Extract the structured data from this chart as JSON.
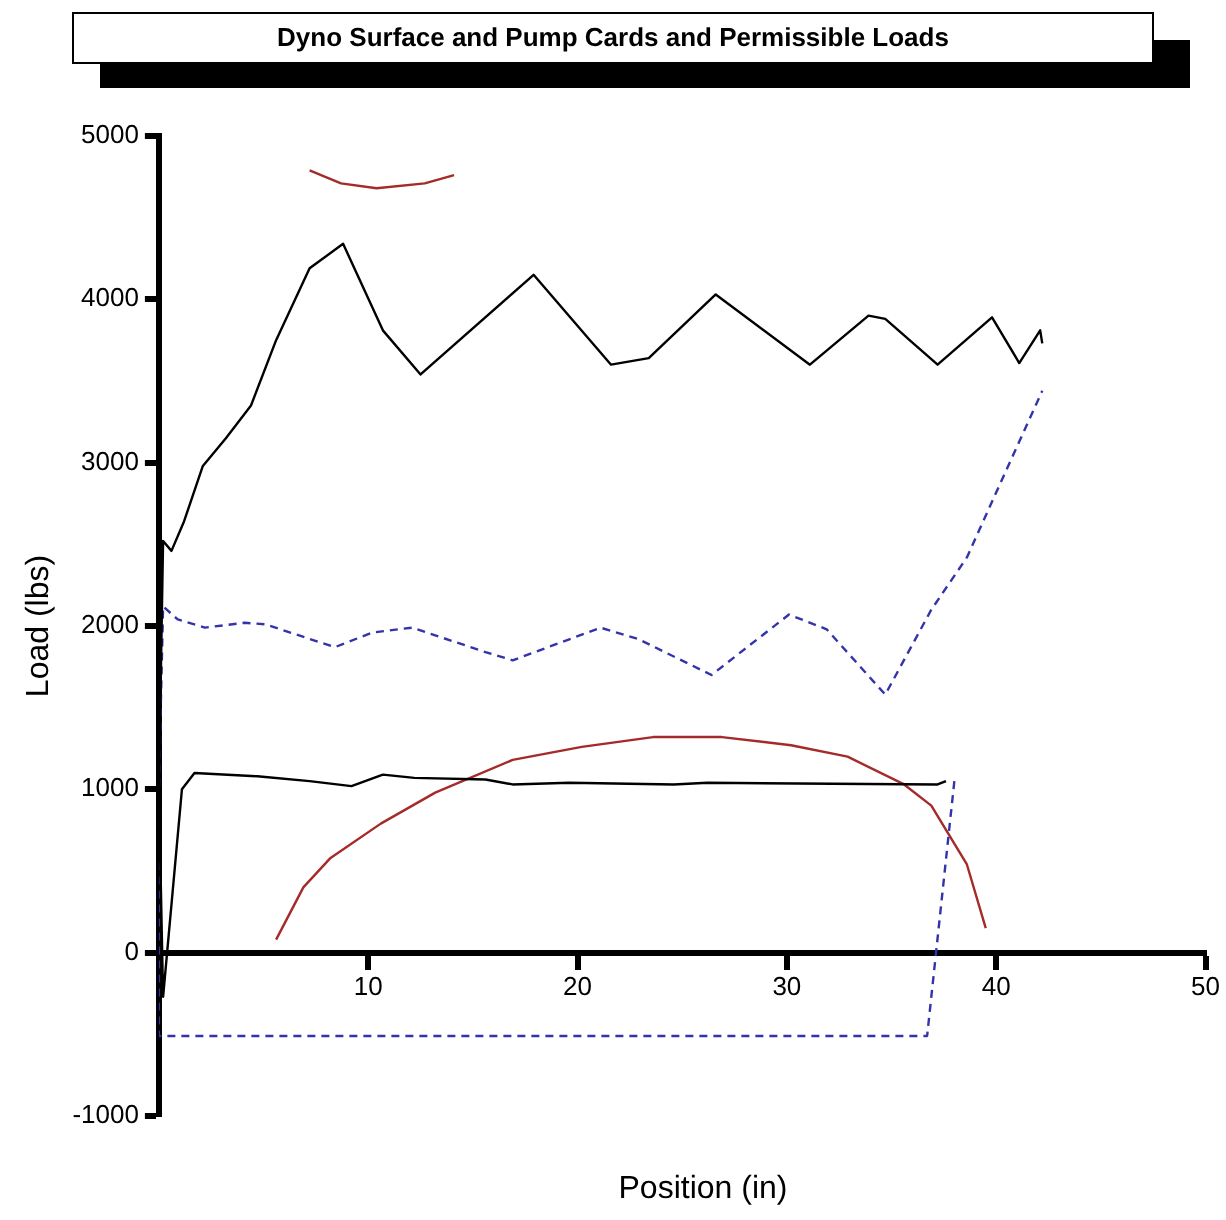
{
  "chart_data": {
    "type": "line",
    "title": "Dyno Surface and Pump Cards and Permissible Loads",
    "xlabel": "Position (in)",
    "ylabel": "Load (lbs)",
    "xlim": [
      0,
      50
    ],
    "xticks": [
      {
        "value": 0,
        "label": null
      },
      10,
      20,
      30,
      40,
      50
    ],
    "ylim": [
      -1000,
      5000
    ],
    "yticks": [
      -1000,
      0,
      1000,
      2000,
      3000,
      4000,
      5000
    ],
    "grid": false,
    "legend": false,
    "marker": "none",
    "series": [
      {
        "color": "#000000",
        "line_style": "solid",
        "x": [
          37.6,
          37.2,
          26.2,
          24.6,
          19.6,
          16.9,
          15.6,
          12.2,
          10.7,
          9.2,
          7.2,
          4.7,
          1.7,
          1.1,
          0.2,
          0,
          0.2,
          0.6,
          1.2,
          2.1,
          3.2,
          4.4,
          5.6,
          7.2,
          8.8,
          10.7,
          12.5,
          17.9,
          21.6,
          23.4,
          26.6,
          31.1,
          33.9,
          34.7,
          37.2,
          39.8,
          41.1,
          42.1,
          42.2
        ],
        "values": [
          1050,
          1030,
          1040,
          1030,
          1040,
          1030,
          1060,
          1070,
          1090,
          1020,
          1050,
          1080,
          1100,
          1000,
          -270,
          1000,
          2520,
          2460,
          2640,
          2980,
          3150,
          3350,
          3750,
          4190,
          4340,
          3810,
          3540,
          4150,
          3600,
          3640,
          4030,
          3600,
          3900,
          3880,
          3600,
          3890,
          3610,
          3810,
          3730
        ]
      },
      {
        "color": "#3333aa",
        "line_style": "dashed",
        "x": [
          38.0,
          36.7,
          0,
          0,
          0.2,
          0.9,
          2.2,
          4.1,
          5.1,
          8.4,
          10.2,
          12.1,
          15.6,
          16.9,
          21.1,
          22.9,
          26.4,
          30.1,
          31.9,
          34.7,
          36.9,
          38.6,
          39.9,
          42.2
        ],
        "values": [
          1050,
          -510,
          -510,
          1000,
          2120,
          2040,
          1990,
          2020,
          2010,
          1870,
          1960,
          1990,
          1840,
          1790,
          1990,
          1920,
          1700,
          2070,
          1980,
          1580,
          2100,
          2420,
          2790,
          3440
        ]
      },
      {
        "color": "#a52a2a",
        "line_style": "solid",
        "x": [
          7.2,
          8.7,
          10.4,
          12.7,
          14.1
        ],
        "values": [
          4790,
          4710,
          4680,
          4710,
          4760
        ]
      },
      {
        "color": "#a52a2a",
        "line_style": "solid",
        "x": [
          5.6,
          6.9,
          8.2,
          10.6,
          13.2,
          16.9,
          20.2,
          23.6,
          26.9,
          30.2,
          32.9,
          35.6,
          36.9,
          38.6,
          39.5
        ],
        "values": [
          80,
          400,
          580,
          790,
          980,
          1180,
          1260,
          1320,
          1320,
          1270,
          1200,
          1030,
          900,
          540,
          150
        ]
      }
    ]
  }
}
